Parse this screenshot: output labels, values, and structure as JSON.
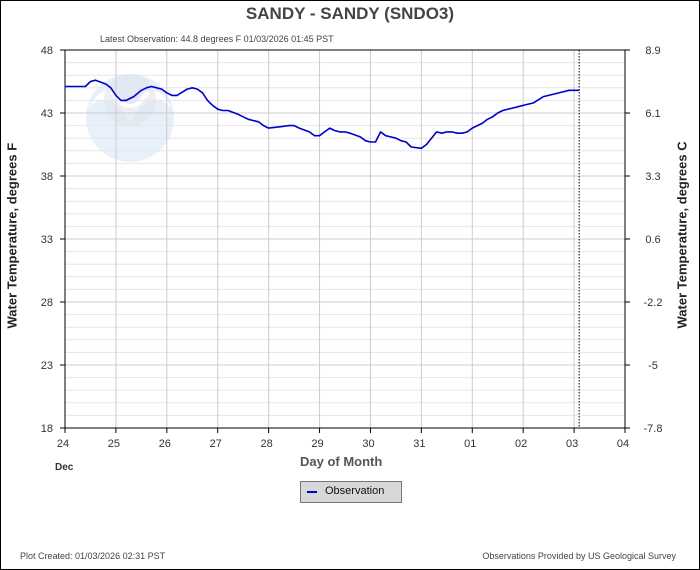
{
  "title": "SANDY - SANDY  (SNDO3)",
  "latest_observation": "Latest Observation: 44.8 degrees F  01/03/2026 01:45 PST",
  "footer": {
    "created": "Plot Created: 01/03/2026 02:31 PST",
    "provided": "Observations Provided by US Geological Survey"
  },
  "legend": {
    "label": "Observation"
  },
  "colors": {
    "series": "#0000cc",
    "grid": "#cccccc",
    "minor_grid": "#e6e6e6"
  },
  "watermark": "noaa-logo",
  "chart_data": {
    "type": "line",
    "title": "SANDY - SANDY  (SNDO3)",
    "xlabel": "Day of Month",
    "x_month_label": "Dec",
    "ylabel_left": "Water Temperature, degrees F",
    "ylabel_right": "Water Temperature, degrees C",
    "x_ticks": [
      "24",
      "25",
      "26",
      "27",
      "28",
      "29",
      "30",
      "31",
      "01",
      "02",
      "03",
      "04"
    ],
    "y_ticks_left": [
      "48",
      "43",
      "38",
      "33",
      "28",
      "23",
      "18"
    ],
    "y_ticks_right": [
      "8.9",
      "6.1",
      "3.3",
      "0.6",
      "-2.2",
      "-5",
      "-7.8"
    ],
    "ylim": [
      18,
      48
    ],
    "xlim": [
      0,
      11
    ],
    "current_time_marker": 10.1,
    "grid": true,
    "legend_position": "bottom-center",
    "series": [
      {
        "name": "Observation",
        "x": [
          0,
          0.4,
          0.5,
          0.6,
          0.8,
          0.9,
          1.0,
          1.1,
          1.2,
          1.35,
          1.5,
          1.6,
          1.7,
          1.8,
          1.9,
          2.0,
          2.1,
          2.2,
          2.4,
          2.5,
          2.6,
          2.7,
          2.8,
          2.9,
          3.0,
          3.1,
          3.2,
          3.4,
          3.5,
          3.6,
          3.7,
          3.8,
          3.9,
          4.0,
          4.2,
          4.4,
          4.5,
          4.6,
          4.8,
          4.9,
          5.0,
          5.1,
          5.2,
          5.3,
          5.4,
          5.5,
          5.6,
          5.8,
          5.9,
          6.0,
          6.1,
          6.2,
          6.3,
          6.4,
          6.5,
          6.6,
          6.7,
          6.8,
          7.0,
          7.1,
          7.2,
          7.3,
          7.4,
          7.5,
          7.6,
          7.7,
          7.8,
          7.9,
          8.0,
          8.1,
          8.2,
          8.3,
          8.4,
          8.5,
          8.6,
          8.8,
          8.9,
          9.0,
          9.2,
          9.4,
          9.5,
          9.6,
          9.8,
          9.9,
          10.1
        ],
        "values": [
          45.1,
          45.1,
          45.5,
          45.6,
          45.3,
          45.0,
          44.4,
          44.0,
          44.0,
          44.3,
          44.8,
          45.0,
          45.1,
          45.0,
          44.9,
          44.6,
          44.4,
          44.4,
          44.9,
          45.0,
          44.9,
          44.6,
          44.0,
          43.6,
          43.3,
          43.2,
          43.2,
          42.9,
          42.7,
          42.5,
          42.4,
          42.3,
          42.0,
          41.8,
          41.9,
          42.0,
          42.0,
          41.8,
          41.5,
          41.2,
          41.2,
          41.5,
          41.8,
          41.6,
          41.5,
          41.5,
          41.4,
          41.1,
          40.8,
          40.7,
          40.7,
          41.5,
          41.2,
          41.1,
          41.0,
          40.8,
          40.7,
          40.3,
          40.2,
          40.5,
          41.0,
          41.5,
          41.4,
          41.5,
          41.5,
          41.4,
          41.4,
          41.5,
          41.8,
          42.0,
          42.2,
          42.5,
          42.7,
          43.0,
          43.2,
          43.4,
          43.5,
          43.6,
          43.8,
          44.3,
          44.4,
          44.5,
          44.7,
          44.8,
          44.8
        ]
      }
    ]
  }
}
